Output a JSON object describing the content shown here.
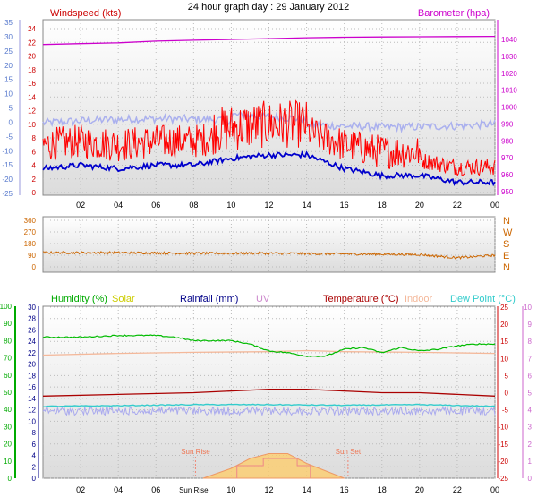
{
  "title": "24 hour graph day : 29 January 2012",
  "x_ticks": [
    "02",
    "04",
    "06",
    "08",
    "10",
    "12",
    "14",
    "16",
    "18",
    "20",
    "22",
    "00"
  ],
  "panel1": {
    "label_left": "Windspeed (kts)",
    "label_right": "Barometer (hpa)",
    "axis_left_outer": [
      "35",
      "30",
      "25",
      "20",
      "15",
      "10",
      "5",
      "0",
      "-5",
      "-10",
      "-15",
      "-20",
      "-25"
    ],
    "axis_left_inner": [
      "24",
      "22",
      "20",
      "18",
      "16",
      "14",
      "12",
      "10",
      "8",
      "6",
      "4",
      "2",
      "0"
    ],
    "axis_right": [
      "1040",
      "1030",
      "1020",
      "1010",
      "1000",
      "990",
      "980",
      "970",
      "960",
      "950"
    ]
  },
  "panel2": {
    "axis_left": [
      "360",
      "270",
      "180",
      "90",
      "0"
    ],
    "axis_right": [
      "N",
      "W",
      "S",
      "E",
      "N"
    ]
  },
  "panel3": {
    "labels": {
      "humidity": "Humidity (%)",
      "solar": "Solar",
      "rainfall": "Rainfall (mm)",
      "uv": "UV",
      "temperature": "Temperature (°C)",
      "indoor": "Indoor",
      "dewpoint": "Dew Point (°C)"
    },
    "axis_humidity": [
      "100",
      "90",
      "80",
      "70",
      "60",
      "50",
      "40",
      "30",
      "20",
      "10",
      "0"
    ],
    "axis_rain": [
      "30",
      "28",
      "26",
      "24",
      "22",
      "20",
      "18",
      "16",
      "14",
      "12",
      "10",
      "8",
      "6",
      "4",
      "2",
      "0"
    ],
    "axis_temp": [
      "25",
      "20",
      "15",
      "10",
      "5",
      "0",
      "-5",
      "-10",
      "-15",
      "-20",
      "-25"
    ],
    "axis_uv": [
      "10",
      "9",
      "8",
      "7",
      "6",
      "5",
      "4",
      "3",
      "2",
      "1",
      "0"
    ],
    "x_ticks": [
      "02",
      "04",
      "06",
      "Sun Rise",
      "10",
      "12",
      "14",
      "16",
      "18",
      "20",
      "22",
      "00"
    ],
    "sun_rise_label": "Sun Rise",
    "sun_set_label": "Sun Set"
  },
  "colors": {
    "wind_gust": "#ff0000",
    "wind_avg": "#0000cc",
    "barometer": "#cc00cc",
    "wind_dir": "#cc6600",
    "humidity": "#00bb00",
    "temperature": "#aa0000",
    "dewpoint": "#33cccc",
    "indoor": "#f4b89a",
    "solar": "#ffcc66"
  },
  "chart_data": [
    {
      "type": "line",
      "title": "24 hour graph day : 29 January 2012",
      "xlabel": "",
      "series": [
        {
          "name": "Windspeed (kts)",
          "x": [
            0,
            2,
            4,
            6,
            8,
            10,
            12,
            14,
            16,
            18,
            20,
            22,
            24
          ],
          "values": [
            3.5,
            4,
            3.5,
            4,
            4,
            5,
            5.5,
            5.5,
            3.5,
            2.5,
            2.5,
            1.5,
            1.5
          ]
        },
        {
          "name": "Barometer (hpa)",
          "x": [
            0,
            2,
            4,
            6,
            8,
            10,
            12,
            14,
            16,
            18,
            20,
            22,
            24
          ],
          "values": [
            1037,
            1037.5,
            1038,
            1039,
            1039.5,
            1040,
            1040.5,
            1041,
            1041.3,
            1041.5,
            1041.6,
            1041.7,
            1041.8
          ]
        }
      ],
      "y_left_lim": [
        0,
        25
      ],
      "y_right_lim": [
        945,
        1045
      ]
    },
    {
      "type": "line",
      "series": [
        {
          "name": "Wind direction",
          "x": [
            0,
            4,
            8,
            12,
            16,
            20,
            22,
            24
          ],
          "values": [
            110,
            110,
            105,
            105,
            100,
            95,
            70,
            90
          ]
        }
      ],
      "ylim": [
        0,
        360
      ]
    },
    {
      "type": "line",
      "series": [
        {
          "name": "Humidity (%)",
          "x": [
            0,
            2,
            4,
            6,
            7,
            8,
            10,
            11,
            12,
            13,
            14,
            15,
            16,
            17,
            18,
            19,
            20,
            21,
            22,
            23,
            24
          ],
          "values": [
            82,
            82,
            83,
            83,
            82,
            80,
            80,
            78,
            74,
            73,
            71,
            71,
            75,
            76,
            73,
            76,
            74,
            75,
            77,
            78,
            78
          ]
        },
        {
          "name": "Temperature (°C)",
          "x": [
            0,
            4,
            8,
            10,
            12,
            14,
            16,
            18,
            20,
            22,
            24
          ],
          "values": [
            -1,
            -0.5,
            0,
            0.5,
            1,
            1,
            0.5,
            0,
            0,
            -0.5,
            -1
          ]
        },
        {
          "name": "Dew Point (°C)",
          "x": [
            0,
            4,
            8,
            12,
            16,
            20,
            24
          ],
          "values": [
            -4,
            -3.8,
            -3.5,
            -3.5,
            -3.7,
            -3.5,
            -4
          ]
        },
        {
          "name": "Indoor",
          "x": [
            0,
            4,
            8,
            12,
            14,
            16,
            20,
            24
          ],
          "values": [
            11,
            11.5,
            11.8,
            12,
            12.3,
            12,
            11.8,
            11.5
          ]
        },
        {
          "name": "Solar",
          "x": [
            8.5,
            10,
            11,
            12,
            13,
            14,
            16
          ],
          "values": [
            0,
            2,
            4,
            5,
            5,
            3,
            0
          ]
        }
      ]
    }
  ]
}
